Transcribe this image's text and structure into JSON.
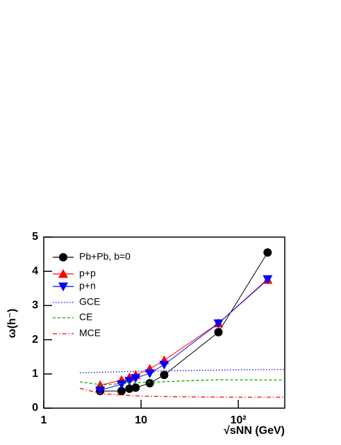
{
  "chart_data": {
    "type": "line",
    "xlabel": "√sNN (GeV)",
    "ylabel": "ω(h⁻)",
    "xscale": "log",
    "xlim": [
      1,
      300
    ],
    "ylim": [
      0,
      5
    ],
    "xticks": [
      1,
      10,
      {
        "value": 100,
        "label": "10²"
      }
    ],
    "yticks": [
      0,
      1,
      2,
      3,
      4,
      5
    ],
    "legend": "upper left",
    "series": [
      {
        "name": "Pb+Pb, b=0",
        "color": "#000000",
        "marker": "circle",
        "linestyle": "solid",
        "x": [
          3.8,
          6.3,
          7.6,
          8.8,
          12.3,
          17.3,
          62.4,
          200
        ],
        "values": [
          0.5,
          0.5,
          0.57,
          0.6,
          0.73,
          0.97,
          2.22,
          4.55
        ]
      },
      {
        "name": "p+p",
        "color": "#ff0000",
        "marker": "triangle-up",
        "linestyle": "solid",
        "x": [
          3.8,
          6.3,
          7.6,
          8.8,
          12.3,
          17.3,
          62.4,
          200
        ],
        "values": [
          0.67,
          0.82,
          0.9,
          0.97,
          1.15,
          1.4,
          2.48,
          3.75
        ]
      },
      {
        "name": "p+n",
        "color": "#0000ff",
        "marker": "triangle-down",
        "linestyle": "solid",
        "x": [
          3.8,
          6.3,
          7.6,
          8.8,
          12.3,
          17.3,
          62.4,
          200
        ],
        "values": [
          0.52,
          0.7,
          0.8,
          0.88,
          1.02,
          1.27,
          2.48,
          3.77
        ]
      },
      {
        "name": "GCE",
        "color": "#0000ff",
        "marker": "none",
        "linestyle": "dotted",
        "x": [
          2.35,
          4,
          10,
          30,
          100,
          300
        ],
        "values": [
          1.03,
          1.05,
          1.08,
          1.1,
          1.12,
          1.13
        ]
      },
      {
        "name": "CE",
        "color": "#00aa00",
        "marker": "none",
        "linestyle": "dashed",
        "x": [
          2.35,
          4,
          10,
          30,
          60,
          300
        ],
        "values": [
          0.77,
          0.68,
          0.75,
          0.8,
          0.83,
          0.82
        ]
      },
      {
        "name": "MCE",
        "color": "#ff0000",
        "marker": "none",
        "linestyle": "dashdot",
        "x": [
          2.35,
          4,
          10,
          30,
          100,
          300
        ],
        "values": [
          0.58,
          0.42,
          0.35,
          0.33,
          0.32,
          0.32
        ]
      }
    ]
  }
}
